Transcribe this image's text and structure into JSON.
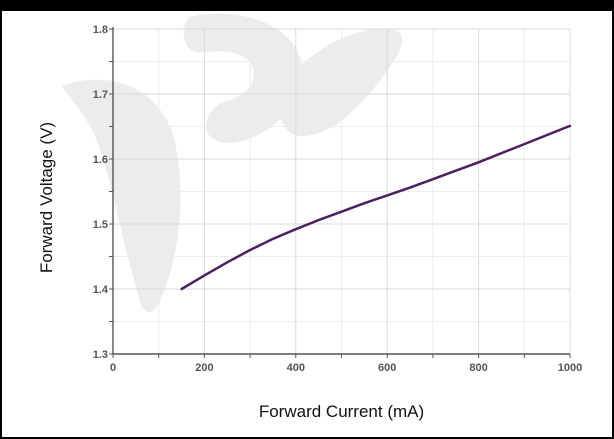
{
  "chart_data": {
    "type": "line",
    "xlabel": "Forward Current (mA)",
    "ylabel": "Forward Voltage (V)",
    "xlim": [
      0,
      1000
    ],
    "ylim": [
      1.3,
      1.8
    ],
    "x_ticks": [
      "0",
      "200",
      "400",
      "600",
      "800",
      "1000"
    ],
    "y_ticks": [
      "1.3",
      "1.4",
      "1.5",
      "1.6",
      "1.7",
      "1.8"
    ],
    "grid": true,
    "line_color": "#4b2060",
    "series": [
      {
        "x": [
          150,
          200,
          250,
          300,
          350,
          400,
          450,
          500,
          550,
          600,
          650,
          700,
          750,
          800,
          850,
          900,
          950,
          1000
        ],
        "y": [
          1.4,
          1.421,
          1.441,
          1.46,
          1.477,
          1.492,
          1.506,
          1.519,
          1.532,
          1.544,
          1.556,
          1.569,
          1.582,
          1.595,
          1.609,
          1.623,
          1.637,
          1.651
        ]
      }
    ]
  }
}
